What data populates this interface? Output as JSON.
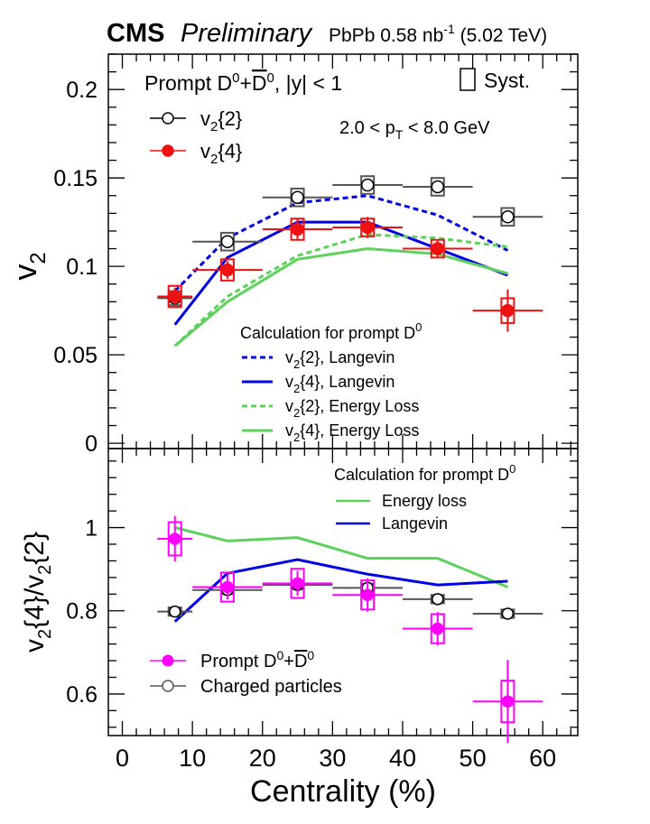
{
  "header": {
    "experiment": "CMS",
    "status": "Preliminary",
    "system_prefix": "PbPb 0.58 nb",
    "lumi_exp": "-1",
    "energy": "(5.02 TeV)"
  },
  "top": {
    "label_prompt": "Prompt D",
    "label_abs_y": ", |y| < 1",
    "syst_label": "Syst.",
    "pt_range": "2.0 < p",
    "pt_sub": "T",
    "pt_range_tail": " < 8.0 GeV",
    "legend_v22": "v",
    "legend_v22_sub": "2",
    "legend_v22_tail": "{2}",
    "legend_v24": "v",
    "legend_v24_sub": "2",
    "legend_v24_tail": "{4}",
    "calc_title": "Calculation for prompt D",
    "calc_items": [
      {
        "sub": "2",
        "tail": "{2}, Langevin",
        "color": "#0000e6",
        "dash": true
      },
      {
        "sub": "2",
        "tail": "{4}, Langevin",
        "color": "#0000e6",
        "dash": false
      },
      {
        "sub": "2",
        "tail": "{2}, Energy Loss",
        "color": "#5cd15c",
        "dash": true
      },
      {
        "sub": "2",
        "tail": "{4}, Energy Loss",
        "color": "#5cd15c",
        "dash": false
      }
    ]
  },
  "bottom": {
    "calc_title": "Calculation for prompt D",
    "legend_eloss": "Energy loss",
    "legend_langevin": "Langevin",
    "legend_prompt": "Prompt D",
    "legend_charged": "Charged particles"
  },
  "chart_data": [
    {
      "type": "line",
      "title": "",
      "xlabel": "Centrality (%)",
      "ylabel": "v2",
      "xlim": [
        -2,
        65
      ],
      "ylim": [
        -0.003,
        0.22
      ],
      "xticks": [
        "0",
        "10",
        "20",
        "30",
        "40",
        "50",
        "60"
      ],
      "yticks": [
        "0",
        "0.05",
        "0.1",
        "0.15",
        "0.2"
      ],
      "ytick_values": [
        0,
        0.05,
        0.1,
        0.15,
        0.2
      ],
      "series": [
        {
          "name": "v2{2}",
          "style": "open-marker",
          "color": "#555555",
          "x": [
            7.5,
            15,
            25,
            35,
            45,
            55
          ],
          "y": [
            0.082,
            0.114,
            0.139,
            0.146,
            0.145,
            0.128
          ],
          "yerr": [
            0.002,
            0.002,
            0.002,
            0.002,
            0.002,
            0.002
          ],
          "xerr": [
            2.5,
            5,
            5,
            5,
            5,
            5
          ],
          "syst": [
            0.004,
            0.005,
            0.005,
            0.005,
            0.005,
            0.005
          ]
        },
        {
          "name": "v2{4}",
          "style": "filled-marker",
          "color": "#ee1111",
          "x": [
            7.5,
            15,
            25,
            35,
            45,
            55
          ],
          "y": [
            0.083,
            0.098,
            0.121,
            0.122,
            0.11,
            0.075
          ],
          "yerr": [
            0.005,
            0.005,
            0.006,
            0.006,
            0.005,
            0.012
          ],
          "xerr": [
            2.5,
            5,
            5,
            5,
            5,
            5
          ],
          "syst": [
            0.006,
            0.006,
            0.006,
            0.005,
            0.005,
            0.007
          ]
        },
        {
          "name": "v2{2}, Langevin",
          "style": "dashed-line",
          "color": "#0000e6",
          "x": [
            7.5,
            15,
            25,
            35,
            45,
            55
          ],
          "y": [
            0.086,
            0.116,
            0.136,
            0.14,
            0.129,
            0.109
          ]
        },
        {
          "name": "v2{4}, Langevin",
          "style": "solid-line",
          "color": "#0000e6",
          "x": [
            7.5,
            15,
            25,
            35,
            45,
            55
          ],
          "y": [
            0.067,
            0.105,
            0.125,
            0.125,
            0.11,
            0.095
          ]
        },
        {
          "name": "v2{2}, Energy Loss",
          "style": "dashed-line",
          "color": "#5cd15c",
          "x": [
            7.5,
            15,
            25,
            35,
            45,
            55
          ],
          "y": [
            0.055,
            0.083,
            0.106,
            0.118,
            0.116,
            0.111
          ]
        },
        {
          "name": "v2{4}, Energy Loss",
          "style": "solid-line",
          "color": "#5cd15c",
          "x": [
            7.5,
            15,
            25,
            35,
            45,
            55
          ],
          "y": [
            0.055,
            0.08,
            0.104,
            0.11,
            0.107,
            0.096
          ]
        }
      ]
    },
    {
      "type": "line",
      "title": "",
      "xlabel": "Centrality (%)",
      "ylabel": "v2{4}/v2{2}",
      "xlim": [
        -2,
        65
      ],
      "ylim": [
        0.5,
        1.19
      ],
      "xticks": [
        "0",
        "10",
        "20",
        "30",
        "40",
        "50",
        "60"
      ],
      "yticks": [
        "0.6",
        "0.8",
        "1"
      ],
      "ytick_values": [
        0.6,
        0.8,
        1.0
      ],
      "series": [
        {
          "name": "Charged particles",
          "style": "open-marker",
          "color": "#555555",
          "x": [
            7.5,
            15,
            25,
            35,
            45,
            55
          ],
          "y": [
            0.798,
            0.85,
            0.862,
            0.855,
            0.828,
            0.793
          ],
          "yerr": [
            0.003,
            0.003,
            0.003,
            0.003,
            0.003,
            0.003
          ],
          "xerr": [
            2.5,
            5,
            5,
            5,
            5,
            5
          ],
          "syst": [
            0.01,
            0.01,
            0.01,
            0.01,
            0.01,
            0.01
          ]
        },
        {
          "name": "Prompt D0+D0bar",
          "style": "filled-marker",
          "color": "#ff00ff",
          "x": [
            7.5,
            15,
            25,
            35,
            45,
            55
          ],
          "y": [
            0.973,
            0.857,
            0.866,
            0.838,
            0.757,
            0.582
          ],
          "yerr": [
            0.055,
            0.03,
            0.03,
            0.04,
            0.04,
            0.1
          ],
          "xerr": [
            2.5,
            5,
            5,
            5,
            5,
            5
          ],
          "syst": [
            0.04,
            0.035,
            0.035,
            0.035,
            0.035,
            0.05
          ]
        },
        {
          "name": "Energy loss",
          "style": "solid-line",
          "color": "#5cd15c",
          "x": [
            7.5,
            15,
            25,
            35,
            45,
            55
          ],
          "y": [
            1.0,
            0.968,
            0.976,
            0.926,
            0.926,
            0.857
          ]
        },
        {
          "name": "Langevin",
          "style": "solid-line",
          "color": "#0000e6",
          "x": [
            7.5,
            15,
            25,
            35,
            45,
            55
          ],
          "y": [
            0.774,
            0.89,
            0.923,
            0.888,
            0.862,
            0.871
          ]
        }
      ]
    }
  ]
}
